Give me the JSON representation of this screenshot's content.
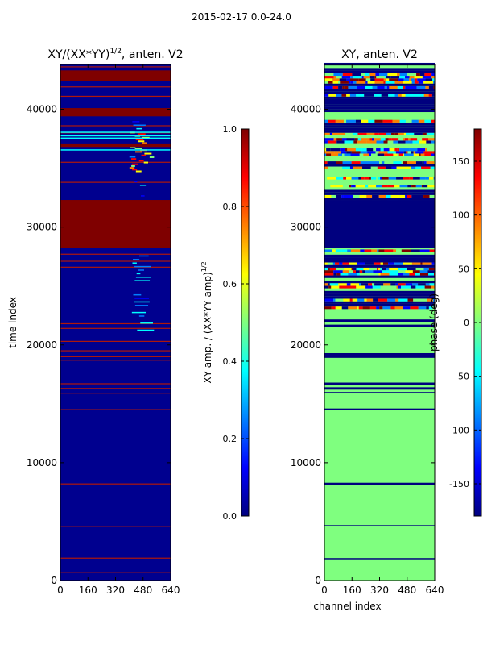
{
  "figure": {
    "suptitle": "2015-02-17 0.0-24.0"
  },
  "colors": {
    "amp_background": "#00008f",
    "amp_high": "#7f0000",
    "phase_background": "#7fff7f",
    "phase_low": "#00007f",
    "jet_stops": [
      "#00007f",
      "#0000ff",
      "#007fff",
      "#00ffff",
      "#7fff7f",
      "#ffff00",
      "#ff7f00",
      "#ff0000",
      "#7f0000"
    ]
  },
  "chart_data": [
    {
      "type": "heatmap",
      "title": "XY/(XX*YY)",
      "title_superscript": "1/2",
      "title_suffix": ", anten. V2",
      "xlabel": "",
      "ylabel": "time index",
      "xlim": [
        0,
        640
      ],
      "ylim": [
        0,
        43800
      ],
      "x_ticks": [
        0,
        160,
        320,
        480,
        640
      ],
      "y_ticks": [
        0,
        10000,
        20000,
        30000,
        40000
      ],
      "colormap": "jet",
      "colorbar": {
        "label": "XY amp. / (XX*YY amp)",
        "label_superscript": "1/2",
        "range": [
          0.0,
          1.0
        ],
        "ticks": [
          "0.0",
          "0.2",
          "0.4",
          "0.6",
          "0.8",
          "1.0"
        ]
      },
      "saturated_time_bands": [
        [
          28200,
          32300
        ],
        [
          39400,
          40100
        ],
        [
          42400,
          43300
        ],
        [
          36800,
          37100
        ]
      ],
      "thin_high_rows": [
        700,
        1900,
        4600,
        8200,
        14500,
        15900,
        16300,
        16700,
        18700,
        19000,
        19500,
        20300,
        21400,
        21800,
        26600,
        27100,
        27700,
        33800,
        35500,
        38000,
        38600,
        41100,
        41900,
        43600
      ]
    },
    {
      "type": "heatmap",
      "title": "XY, anten. V2",
      "xlabel": "channel index",
      "ylabel": "",
      "xlim": [
        0,
        640
      ],
      "ylim": [
        0,
        43800
      ],
      "x_ticks": [
        0,
        160,
        320,
        480,
        640
      ],
      "y_ticks": [
        0,
        10000,
        20000,
        30000,
        40000
      ],
      "colormap": "jet",
      "colorbar": {
        "label": "phase (deg)",
        "range": [
          -180,
          180
        ],
        "ticks": [
          "-150",
          "-100",
          "-50",
          "0",
          "50",
          "100",
          "150"
        ]
      },
      "low_phase_bands": [
        [
          28200,
          32300
        ],
        [
          1800,
          1900
        ],
        [
          4600,
          4700
        ],
        [
          8100,
          8300
        ],
        [
          14500,
          14600
        ],
        [
          15900,
          16000
        ],
        [
          16200,
          16400
        ],
        [
          16600,
          16800
        ],
        [
          18900,
          19300
        ]
      ],
      "noisy_region": [
        21500,
        43800
      ]
    }
  ]
}
